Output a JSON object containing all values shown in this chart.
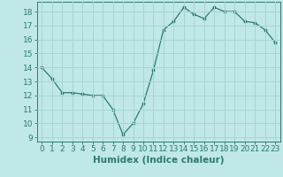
{
  "x": [
    0,
    1,
    2,
    3,
    4,
    5,
    6,
    7,
    8,
    9,
    10,
    11,
    12,
    13,
    14,
    15,
    16,
    17,
    18,
    19,
    20,
    21,
    22,
    23
  ],
  "y": [
    14.0,
    13.2,
    12.2,
    12.2,
    12.1,
    12.0,
    12.0,
    11.0,
    9.2,
    10.0,
    11.4,
    13.8,
    16.7,
    17.3,
    18.3,
    17.8,
    17.5,
    18.3,
    18.0,
    18.0,
    17.3,
    17.2,
    16.7,
    15.8
  ],
  "line_color": "#2d7a6e",
  "bg_color": "#c0e8e8",
  "grid_color": "#a8d4d4",
  "xlabel": "Humidex (Indice chaleur)",
  "ylabel_ticks": [
    9,
    10,
    11,
    12,
    13,
    14,
    15,
    16,
    17,
    18
  ],
  "ylim": [
    8.7,
    18.7
  ],
  "xlim": [
    -0.5,
    23.5
  ],
  "xlabel_fontsize": 7.5,
  "tick_fontsize": 6.5
}
